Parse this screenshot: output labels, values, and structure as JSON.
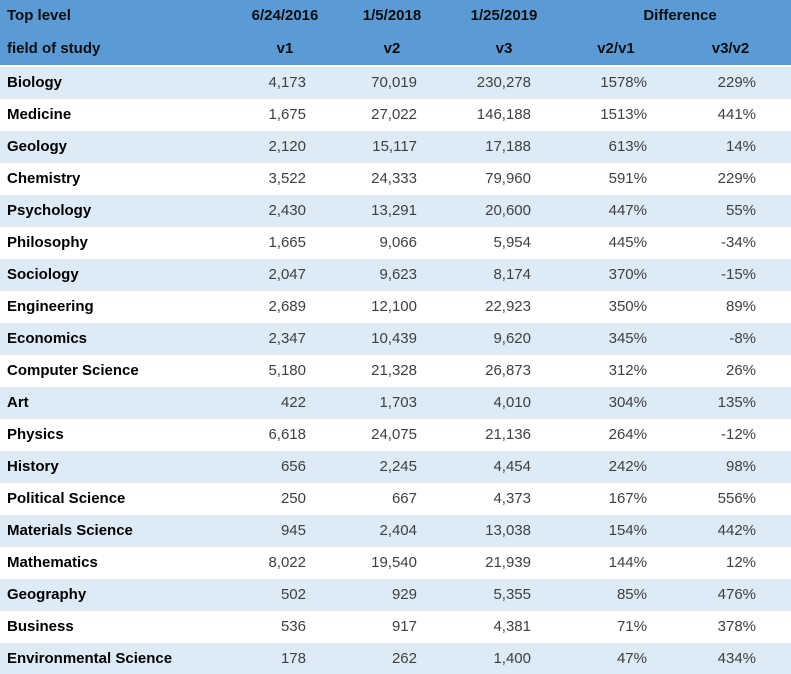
{
  "colors": {
    "header_bg": "#5B9BD5",
    "band_row_bg": "#DDEBF7",
    "plain_row_bg": "#FFFFFF",
    "header_text": "#0d0d0d",
    "field_text": "#000000",
    "number_text": "#3f3f3f"
  },
  "table": {
    "header": {
      "top_left": "Top level",
      "bottom_left": "field of study",
      "v1_date": "6/24/2016",
      "v2_date": "1/5/2018",
      "v3_date": "1/25/2019",
      "difference": "Difference",
      "v1": "v1",
      "v2": "v2",
      "v3": "v3",
      "v2v1": "v2/v1",
      "v3v2": "v3/v2"
    },
    "rows": [
      {
        "field": "Biology",
        "v1": "4,173",
        "v2": "70,019",
        "v3": "230,278",
        "v2v1": "1578%",
        "v3v2": "229%"
      },
      {
        "field": "Medicine",
        "v1": "1,675",
        "v2": "27,022",
        "v3": "146,188",
        "v2v1": "1513%",
        "v3v2": "441%"
      },
      {
        "field": "Geology",
        "v1": "2,120",
        "v2": "15,117",
        "v3": "17,188",
        "v2v1": "613%",
        "v3v2": "14%"
      },
      {
        "field": "Chemistry",
        "v1": "3,522",
        "v2": "24,333",
        "v3": "79,960",
        "v2v1": "591%",
        "v3v2": "229%"
      },
      {
        "field": "Psychology",
        "v1": "2,430",
        "v2": "13,291",
        "v3": "20,600",
        "v2v1": "447%",
        "v3v2": "55%"
      },
      {
        "field": "Philosophy",
        "v1": "1,665",
        "v2": "9,066",
        "v3": "5,954",
        "v2v1": "445%",
        "v3v2": "-34%"
      },
      {
        "field": "Sociology",
        "v1": "2,047",
        "v2": "9,623",
        "v3": "8,174",
        "v2v1": "370%",
        "v3v2": "-15%"
      },
      {
        "field": "Engineering",
        "v1": "2,689",
        "v2": "12,100",
        "v3": "22,923",
        "v2v1": "350%",
        "v3v2": "89%"
      },
      {
        "field": "Economics",
        "v1": "2,347",
        "v2": "10,439",
        "v3": "9,620",
        "v2v1": "345%",
        "v3v2": "-8%"
      },
      {
        "field": "Computer Science",
        "v1": "5,180",
        "v2": "21,328",
        "v3": "26,873",
        "v2v1": "312%",
        "v3v2": "26%"
      },
      {
        "field": "Art",
        "v1": "422",
        "v2": "1,703",
        "v3": "4,010",
        "v2v1": "304%",
        "v3v2": "135%"
      },
      {
        "field": "Physics",
        "v1": "6,618",
        "v2": "24,075",
        "v3": "21,136",
        "v2v1": "264%",
        "v3v2": "-12%"
      },
      {
        "field": "History",
        "v1": "656",
        "v2": "2,245",
        "v3": "4,454",
        "v2v1": "242%",
        "v3v2": "98%"
      },
      {
        "field": "Political Science",
        "v1": "250",
        "v2": "667",
        "v3": "4,373",
        "v2v1": "167%",
        "v3v2": "556%"
      },
      {
        "field": "Materials Science",
        "v1": "945",
        "v2": "2,404",
        "v3": "13,038",
        "v2v1": "154%",
        "v3v2": "442%"
      },
      {
        "field": "Mathematics",
        "v1": "8,022",
        "v2": "19,540",
        "v3": "21,939",
        "v2v1": "144%",
        "v3v2": "12%"
      },
      {
        "field": "Geography",
        "v1": "502",
        "v2": "929",
        "v3": "5,355",
        "v2v1": "85%",
        "v3v2": "476%"
      },
      {
        "field": "Business",
        "v1": "536",
        "v2": "917",
        "v3": "4,381",
        "v2v1": "71%",
        "v3v2": "378%"
      },
      {
        "field": "Environmental Science",
        "v1": "178",
        "v2": "262",
        "v3": "1,400",
        "v2v1": "47%",
        "v3v2": "434%"
      }
    ]
  },
  "chart_data": {
    "type": "table",
    "title": "Top level field of study — record counts by version and difference",
    "columns": [
      "Top level field of study",
      "6/24/2016 v1",
      "1/5/2018 v2",
      "1/25/2019 v3",
      "Difference v2/v1",
      "Difference v3/v2"
    ],
    "rows": [
      {
        "field": "Biology",
        "v1": 4173,
        "v2": 70019,
        "v3": 230278,
        "v2_v1_pct": 1578,
        "v3_v2_pct": 229
      },
      {
        "field": "Medicine",
        "v1": 1675,
        "v2": 27022,
        "v3": 146188,
        "v2_v1_pct": 1513,
        "v3_v2_pct": 441
      },
      {
        "field": "Geology",
        "v1": 2120,
        "v2": 15117,
        "v3": 17188,
        "v2_v1_pct": 613,
        "v3_v2_pct": 14
      },
      {
        "field": "Chemistry",
        "v1": 3522,
        "v2": 24333,
        "v3": 79960,
        "v2_v1_pct": 591,
        "v3_v2_pct": 229
      },
      {
        "field": "Psychology",
        "v1": 2430,
        "v2": 13291,
        "v3": 20600,
        "v2_v1_pct": 447,
        "v3_v2_pct": 55
      },
      {
        "field": "Philosophy",
        "v1": 1665,
        "v2": 9066,
        "v3": 5954,
        "v2_v1_pct": 445,
        "v3_v2_pct": -34
      },
      {
        "field": "Sociology",
        "v1": 2047,
        "v2": 9623,
        "v3": 8174,
        "v2_v1_pct": 370,
        "v3_v2_pct": -15
      },
      {
        "field": "Engineering",
        "v1": 2689,
        "v2": 12100,
        "v3": 22923,
        "v2_v1_pct": 350,
        "v3_v2_pct": 89
      },
      {
        "field": "Economics",
        "v1": 2347,
        "v2": 10439,
        "v3": 9620,
        "v2_v1_pct": 345,
        "v3_v2_pct": -8
      },
      {
        "field": "Computer Science",
        "v1": 5180,
        "v2": 21328,
        "v3": 26873,
        "v2_v1_pct": 312,
        "v3_v2_pct": 26
      },
      {
        "field": "Art",
        "v1": 422,
        "v2": 1703,
        "v3": 4010,
        "v2_v1_pct": 304,
        "v3_v2_pct": 135
      },
      {
        "field": "Physics",
        "v1": 6618,
        "v2": 24075,
        "v3": 21136,
        "v2_v1_pct": 264,
        "v3_v2_pct": -12
      },
      {
        "field": "History",
        "v1": 656,
        "v2": 2245,
        "v3": 4454,
        "v2_v1_pct": 242,
        "v3_v2_pct": 98
      },
      {
        "field": "Political Science",
        "v1": 250,
        "v2": 667,
        "v3": 4373,
        "v2_v1_pct": 167,
        "v3_v2_pct": 556
      },
      {
        "field": "Materials Science",
        "v1": 945,
        "v2": 2404,
        "v3": 13038,
        "v2_v1_pct": 154,
        "v3_v2_pct": 442
      },
      {
        "field": "Mathematics",
        "v1": 8022,
        "v2": 19540,
        "v3": 21939,
        "v2_v1_pct": 144,
        "v3_v2_pct": 12
      },
      {
        "field": "Geography",
        "v1": 502,
        "v2": 929,
        "v3": 5355,
        "v2_v1_pct": 85,
        "v3_v2_pct": 476
      },
      {
        "field": "Business",
        "v1": 536,
        "v2": 917,
        "v3": 4381,
        "v2_v1_pct": 71,
        "v3_v2_pct": 378
      },
      {
        "field": "Environmental Science",
        "v1": 178,
        "v2": 262,
        "v3": 1400,
        "v2_v1_pct": 47,
        "v3_v2_pct": 434
      }
    ]
  }
}
